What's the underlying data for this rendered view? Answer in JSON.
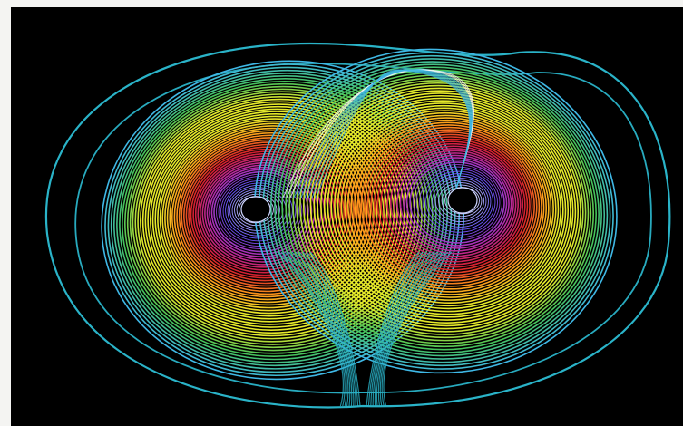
{
  "figure": {
    "subject": "lorenz-attractor",
    "background_color": "#000000",
    "frame_color": "#f4f4f2",
    "palette": [
      "#2ab3c8",
      "#3fb8e6",
      "#46c35a",
      "#e6ea2a",
      "#ff9a1a",
      "#d61f2a",
      "#b52aa8",
      "#6a55ff",
      "#cfd6ff"
    ],
    "lobes": [
      {
        "name": "left",
        "center_color": "#000000"
      },
      {
        "name": "right",
        "center_color": "#000000"
      }
    ]
  }
}
